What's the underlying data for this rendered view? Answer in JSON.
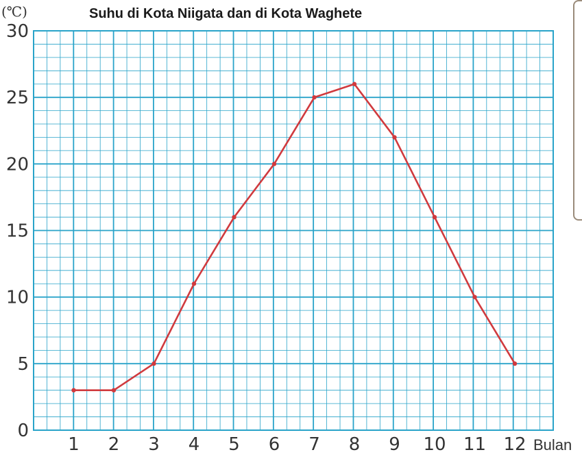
{
  "chart_data": {
    "type": "line",
    "title": "Suhu di Kota Niigata dan di Kota Waghete",
    "ylabel": "(℃)",
    "xlabel": "Bulan",
    "x": [
      "1",
      "2",
      "3",
      "4",
      "5",
      "6",
      "7",
      "8",
      "9",
      "10",
      "11",
      "12"
    ],
    "y_ticks": [
      "0",
      "5",
      "10",
      "15",
      "20",
      "25",
      "30"
    ],
    "ylim": [
      0,
      30
    ],
    "xlim": [
      0,
      12
    ],
    "grid": true,
    "series": [
      {
        "values": [
          3,
          3,
          5,
          11,
          16,
          20,
          25,
          26,
          22,
          16,
          10,
          5
        ]
      }
    ]
  },
  "colors": {
    "grid": "#29a3c9",
    "line": "#d03a3e",
    "text": "#333333"
  }
}
